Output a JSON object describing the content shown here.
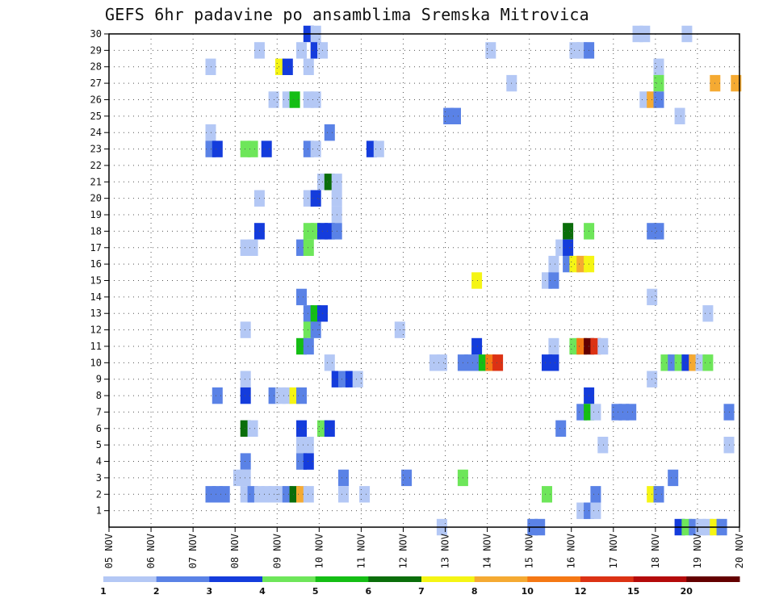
{
  "chart_data": {
    "type": "heatmap",
    "title": "GEFS 6hr padavine po ansamblima Sremska Mitrovica",
    "xlabel": "",
    "ylabel": "",
    "x_ticks": [
      "05 NOV",
      "06 NOV",
      "07 NOV",
      "08 NOV",
      "09 NOV",
      "10 NOV",
      "11 NOV",
      "12 NOV",
      "13 NOV",
      "14 NOV",
      "15 NOV",
      "16 NOV",
      "17 NOV",
      "18 NOV",
      "19 NOV",
      "20 NOV"
    ],
    "xlim_days": [
      0,
      15
    ],
    "y_ticks": [
      1,
      2,
      3,
      4,
      5,
      6,
      7,
      8,
      9,
      10,
      11,
      12,
      13,
      14,
      15,
      16,
      17,
      18,
      19,
      20,
      21,
      22,
      23,
      24,
      25,
      26,
      27,
      28,
      29,
      30
    ],
    "ylim": [
      0,
      30
    ],
    "legend": {
      "levels": [
        "1",
        "2",
        "3",
        "4",
        "5",
        "6",
        "7",
        "8",
        "10",
        "12",
        "15",
        "20"
      ],
      "colors": [
        "#b4c8f5",
        "#5a82e6",
        "#143cdc",
        "#6ee65a",
        "#14be14",
        "#0a6e0a",
        "#f5f514",
        "#f5aa32",
        "#f57814",
        "#dc3214",
        "#b40a0a",
        "#640000"
      ]
    },
    "cells_note": "Each cell: [day_offset_from_05_NOV (0.25 = 6h step), ensemble_member, color_class 0-11]",
    "cells": [
      [
        4.75,
        30,
        2
      ],
      [
        4.92,
        30,
        0
      ],
      [
        12.58,
        30,
        0
      ],
      [
        12.75,
        30,
        0
      ],
      [
        13.75,
        30,
        0
      ],
      [
        3.58,
        29,
        0
      ],
      [
        4.58,
        29,
        0
      ],
      [
        4.92,
        29,
        2
      ],
      [
        5.08,
        29,
        0
      ],
      [
        9.08,
        29,
        0
      ],
      [
        11.08,
        29,
        0
      ],
      [
        11.25,
        29,
        0
      ],
      [
        11.42,
        29,
        1
      ],
      [
        2.42,
        28,
        0
      ],
      [
        4.08,
        28,
        6
      ],
      [
        4.25,
        28,
        2
      ],
      [
        4.75,
        28,
        0
      ],
      [
        13.08,
        28,
        0
      ],
      [
        9.58,
        27,
        0
      ],
      [
        13.08,
        27,
        3
      ],
      [
        14.42,
        27,
        7
      ],
      [
        14.92,
        27,
        7
      ],
      [
        3.92,
        26,
        0
      ],
      [
        4.25,
        26,
        0
      ],
      [
        4.42,
        26,
        4
      ],
      [
        4.75,
        26,
        0
      ],
      [
        4.92,
        26,
        0
      ],
      [
        12.75,
        26,
        0
      ],
      [
        12.92,
        26,
        7
      ],
      [
        13.08,
        26,
        1
      ],
      [
        8.08,
        25,
        1
      ],
      [
        8.25,
        25,
        1
      ],
      [
        13.58,
        25,
        0
      ],
      [
        2.42,
        24,
        0
      ],
      [
        5.25,
        24,
        1
      ],
      [
        2.42,
        23,
        1
      ],
      [
        2.58,
        23,
        2
      ],
      [
        3.25,
        23,
        3
      ],
      [
        3.42,
        23,
        3
      ],
      [
        3.75,
        23,
        2
      ],
      [
        4.75,
        23,
        1
      ],
      [
        4.92,
        23,
        0
      ],
      [
        6.25,
        23,
        2
      ],
      [
        6.42,
        23,
        0
      ],
      [
        5.08,
        21,
        0
      ],
      [
        5.25,
        21,
        5
      ],
      [
        5.42,
        21,
        0
      ],
      [
        3.58,
        20,
        0
      ],
      [
        4.75,
        20,
        0
      ],
      [
        4.92,
        20,
        2
      ],
      [
        5.42,
        20,
        0
      ],
      [
        5.42,
        19,
        0
      ],
      [
        3.58,
        18,
        2
      ],
      [
        4.75,
        18,
        3
      ],
      [
        4.92,
        18,
        3
      ],
      [
        5.08,
        18,
        2
      ],
      [
        5.25,
        18,
        2
      ],
      [
        5.42,
        18,
        1
      ],
      [
        10.92,
        18,
        5
      ],
      [
        11.42,
        18,
        3
      ],
      [
        12.92,
        18,
        1
      ],
      [
        13.08,
        18,
        1
      ],
      [
        3.25,
        17,
        0
      ],
      [
        3.42,
        17,
        0
      ],
      [
        4.58,
        17,
        1
      ],
      [
        4.75,
        17,
        3
      ],
      [
        10.75,
        17,
        0
      ],
      [
        10.92,
        17,
        2
      ],
      [
        10.58,
        16,
        0
      ],
      [
        10.92,
        16,
        1
      ],
      [
        11.08,
        16,
        6
      ],
      [
        11.25,
        16,
        7
      ],
      [
        11.42,
        16,
        6
      ],
      [
        8.75,
        15,
        6
      ],
      [
        10.42,
        15,
        0
      ],
      [
        10.58,
        15,
        1
      ],
      [
        12.92,
        14,
        0
      ],
      [
        4.58,
        14,
        1
      ],
      [
        4.75,
        13,
        1
      ],
      [
        4.92,
        13,
        4
      ],
      [
        5.08,
        13,
        2
      ],
      [
        14.25,
        13,
        0
      ],
      [
        3.25,
        12,
        0
      ],
      [
        4.75,
        12,
        3
      ],
      [
        4.92,
        12,
        1
      ],
      [
        6.92,
        12,
        0
      ],
      [
        4.58,
        11,
        4
      ],
      [
        4.75,
        11,
        1
      ],
      [
        8.75,
        11,
        2
      ],
      [
        10.58,
        11,
        0
      ],
      [
        11.08,
        11,
        3
      ],
      [
        11.25,
        11,
        8
      ],
      [
        11.42,
        11,
        11
      ],
      [
        11.58,
        11,
        9
      ],
      [
        11.75,
        11,
        0
      ],
      [
        5.25,
        10,
        0
      ],
      [
        7.75,
        10,
        0
      ],
      [
        7.92,
        10,
        0
      ],
      [
        8.42,
        10,
        1
      ],
      [
        8.58,
        10,
        1
      ],
      [
        8.75,
        10,
        1
      ],
      [
        8.92,
        10,
        4
      ],
      [
        9.08,
        10,
        8
      ],
      [
        9.25,
        10,
        9
      ],
      [
        10.42,
        10,
        2
      ],
      [
        10.58,
        10,
        2
      ],
      [
        13.25,
        10,
        3
      ],
      [
        13.42,
        10,
        1
      ],
      [
        13.58,
        10,
        3
      ],
      [
        13.75,
        10,
        2
      ],
      [
        13.92,
        10,
        7
      ],
      [
        14.08,
        10,
        0
      ],
      [
        14.25,
        10,
        3
      ],
      [
        3.25,
        9,
        0
      ],
      [
        5.42,
        9,
        2
      ],
      [
        5.58,
        9,
        1
      ],
      [
        5.75,
        9,
        2
      ],
      [
        5.92,
        9,
        0
      ],
      [
        12.92,
        9,
        0
      ],
      [
        2.58,
        8,
        1
      ],
      [
        3.25,
        8,
        2
      ],
      [
        3.92,
        8,
        1
      ],
      [
        4.08,
        8,
        0
      ],
      [
        4.25,
        8,
        0
      ],
      [
        4.42,
        8,
        6
      ],
      [
        4.58,
        8,
        1
      ],
      [
        11.42,
        8,
        2
      ],
      [
        11.25,
        7,
        1
      ],
      [
        11.42,
        7,
        4
      ],
      [
        11.58,
        7,
        0
      ],
      [
        12.08,
        7,
        1
      ],
      [
        12.25,
        7,
        1
      ],
      [
        12.42,
        7,
        1
      ],
      [
        14.75,
        7,
        1
      ],
      [
        3.25,
        6,
        5
      ],
      [
        3.42,
        6,
        0
      ],
      [
        4.58,
        6,
        2
      ],
      [
        5.08,
        6,
        3
      ],
      [
        5.25,
        6,
        2
      ],
      [
        10.75,
        6,
        1
      ],
      [
        4.58,
        5,
        0
      ],
      [
        4.75,
        5,
        0
      ],
      [
        11.75,
        5,
        0
      ],
      [
        14.75,
        5,
        0
      ],
      [
        3.25,
        4,
        1
      ],
      [
        4.58,
        4,
        1
      ],
      [
        4.75,
        4,
        2
      ],
      [
        3.08,
        3,
        0
      ],
      [
        3.25,
        3,
        0
      ],
      [
        5.58,
        3,
        1
      ],
      [
        7.08,
        3,
        1
      ],
      [
        8.42,
        3,
        3
      ],
      [
        13.42,
        3,
        1
      ],
      [
        2.42,
        2,
        1
      ],
      [
        2.58,
        2,
        1
      ],
      [
        2.75,
        2,
        1
      ],
      [
        3.25,
        2,
        0
      ],
      [
        3.42,
        2,
        1
      ],
      [
        3.58,
        2,
        0
      ],
      [
        3.75,
        2,
        0
      ],
      [
        3.92,
        2,
        0
      ],
      [
        4.08,
        2,
        0
      ],
      [
        4.25,
        2,
        1
      ],
      [
        4.42,
        2,
        5
      ],
      [
        4.58,
        2,
        7
      ],
      [
        4.75,
        2,
        0
      ],
      [
        5.58,
        2,
        0
      ],
      [
        6.08,
        2,
        0
      ],
      [
        10.42,
        2,
        3
      ],
      [
        11.58,
        2,
        1
      ],
      [
        12.92,
        2,
        6
      ],
      [
        13.08,
        2,
        1
      ],
      [
        11.25,
        1,
        0
      ],
      [
        11.42,
        1,
        1
      ],
      [
        11.58,
        1,
        0
      ],
      [
        7.92,
        0,
        0
      ],
      [
        10.08,
        0,
        1
      ],
      [
        10.25,
        0,
        1
      ],
      [
        13.58,
        0,
        2
      ],
      [
        13.75,
        0,
        3
      ],
      [
        13.92,
        0,
        1
      ],
      [
        14.08,
        0,
        0
      ],
      [
        14.25,
        0,
        0
      ],
      [
        14.42,
        0,
        6
      ],
      [
        14.58,
        0,
        1
      ]
    ]
  }
}
